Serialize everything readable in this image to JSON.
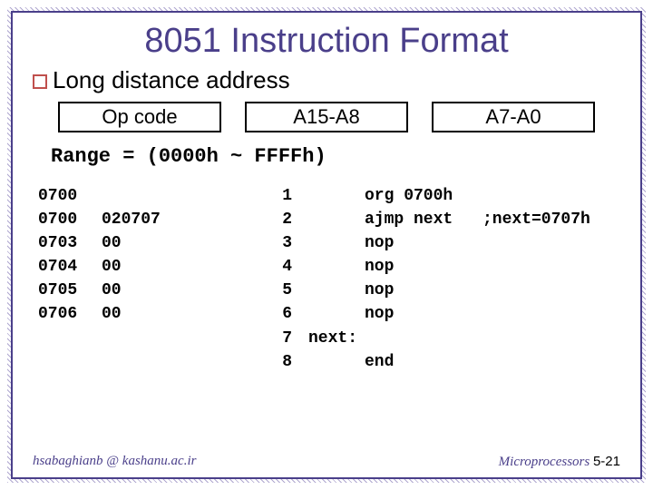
{
  "title": "8051 Instruction Format",
  "bullet": "Long distance address",
  "boxes": [
    "Op code",
    "A15-A8",
    "A7-A0"
  ],
  "range_text": "Range = (0000h ~ FFFFh)",
  "listing": {
    "addrs": [
      "0700",
      "0700",
      "0703",
      "0704",
      "0705",
      "0706",
      "",
      ""
    ],
    "bytes": [
      "",
      "020707",
      "00",
      "00",
      "00",
      "00",
      "",
      ""
    ],
    "lines": [
      "1",
      "2",
      "3",
      "4",
      "5",
      "6",
      "7",
      "8"
    ],
    "labels": [
      "",
      "",
      "",
      "",
      "",
      "",
      "next:",
      ""
    ],
    "instrs": [
      "org 0700h",
      "ajmp next",
      "nop",
      "nop",
      "nop",
      "nop",
      "",
      "end"
    ],
    "cmts": [
      "",
      ";next=0707h",
      "",
      "",
      "",
      "",
      "",
      ""
    ]
  },
  "footer": {
    "left": "hsabaghianb @ kashanu.ac.ir",
    "right_label": "Microprocessors",
    "right_page": "5-21"
  },
  "colors": {
    "border": "#4a3f8a",
    "bullet_border": "#c0504d"
  }
}
